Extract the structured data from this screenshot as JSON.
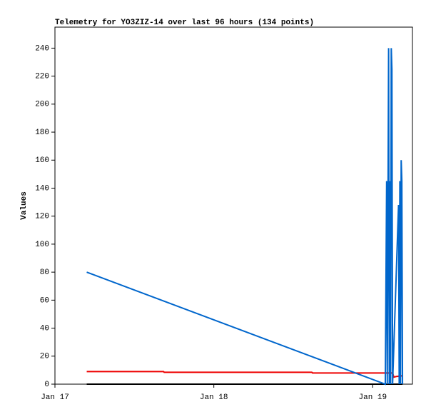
{
  "chart_data": {
    "type": "line",
    "title": "Telemetry for YO3ZIZ-14 over last 96 hours (134 points)",
    "y_label": "Values",
    "xlim": [
      0,
      54
    ],
    "xticks": [
      {
        "value": 0,
        "label": "Jan 17"
      },
      {
        "value": 24,
        "label": "Jan 18"
      },
      {
        "value": 48,
        "label": "Jan 19"
      }
    ],
    "ylim": [
      0,
      255
    ],
    "yticks": [
      0,
      20,
      40,
      60,
      80,
      100,
      120,
      140,
      160,
      180,
      200,
      220,
      240
    ],
    "series": [
      {
        "color": "#000000",
        "x": [
          4.8,
          52.5
        ],
        "values": [
          0,
          0
        ]
      },
      {
        "color": "#ee0000",
        "x": [
          4.8,
          16.4,
          16.5,
          38.8,
          38.9,
          51.0,
          51.2,
          51.6,
          52.5
        ],
        "values": [
          9,
          9,
          8.5,
          8.5,
          8,
          8,
          5,
          5.5,
          6
        ]
      },
      {
        "color": "#0066cc",
        "x": [
          4.8,
          49.9,
          50.1,
          50.2,
          50.4,
          50.5,
          50.6,
          50.7,
          50.8,
          50.9,
          51.0,
          51.9,
          52.0,
          52.1,
          52.2,
          52.3,
          52.4,
          52.5
        ],
        "values": [
          80,
          0,
          145,
          0,
          240,
          0,
          145,
          0,
          240,
          225,
          0,
          128,
          0,
          145,
          0,
          160,
          145,
          0
        ]
      }
    ]
  }
}
